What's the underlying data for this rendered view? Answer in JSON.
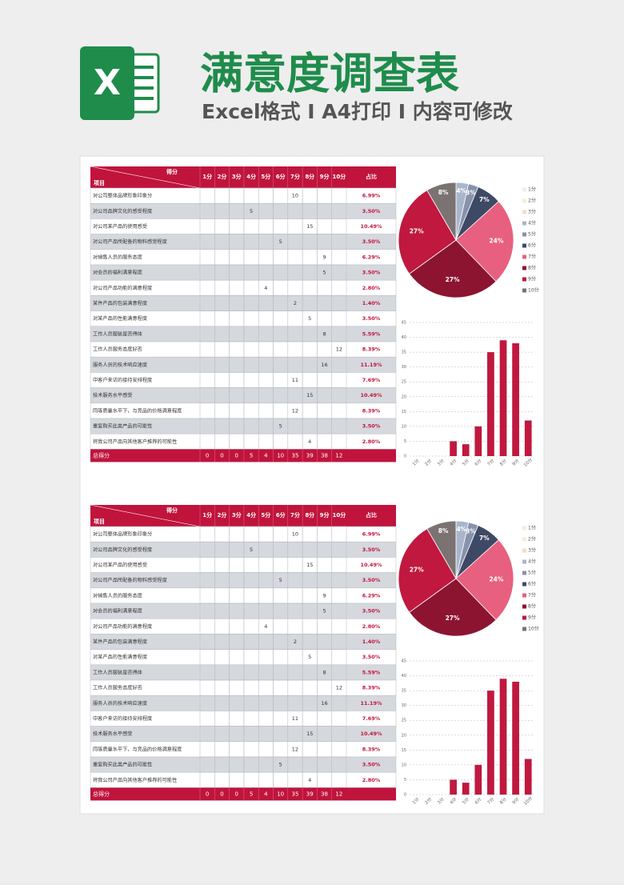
{
  "header": {
    "icon": "X",
    "title": "满意度调查表",
    "subtitle": "Excel格式 I A4打印 I 内容可修改"
  },
  "sheets": [
    {
      "table": {
        "score_header": "得分",
        "item_header": "项目",
        "columns": [
          "1分",
          "2分",
          "3分",
          "4分",
          "5分",
          "6分",
          "7分",
          "8分",
          "9分",
          "10分"
        ],
        "pct_header": "占比",
        "rows": [
          {
            "label": "对公司整体品牌形象印象分",
            "cells": [
              null,
              null,
              null,
              null,
              null,
              null,
              10,
              null,
              null,
              null
            ],
            "pct": "6.99%"
          },
          {
            "label": "对公司品牌文化的感受程度",
            "cells": [
              null,
              null,
              null,
              5,
              null,
              null,
              null,
              null,
              null,
              null
            ],
            "pct": "3.50%"
          },
          {
            "label": "对公司某产品的使用感受",
            "cells": [
              null,
              null,
              null,
              null,
              null,
              null,
              null,
              15,
              null,
              null
            ],
            "pct": "10.49%"
          },
          {
            "label": "对公司产品所配备的物料感受程度",
            "cells": [
              null,
              null,
              null,
              null,
              null,
              5,
              null,
              null,
              null,
              null
            ],
            "pct": "3.50%"
          },
          {
            "label": "对销售人员的服务态度",
            "cells": [
              null,
              null,
              null,
              null,
              null,
              null,
              null,
              null,
              9,
              null
            ],
            "pct": "6.29%"
          },
          {
            "label": "对会员的福利满意程度",
            "cells": [
              null,
              null,
              null,
              null,
              null,
              null,
              null,
              null,
              5,
              null
            ],
            "pct": "3.50%"
          },
          {
            "label": "对公司产品功能的满意程度",
            "cells": [
              null,
              null,
              null,
              null,
              4,
              null,
              null,
              null,
              null,
              null
            ],
            "pct": "2.80%"
          },
          {
            "label": "某件产品的包装满意程度",
            "cells": [
              null,
              null,
              null,
              null,
              null,
              null,
              2,
              null,
              null,
              null
            ],
            "pct": "1.40%"
          },
          {
            "label": "对某产品的性能满意程度",
            "cells": [
              null,
              null,
              null,
              null,
              null,
              null,
              null,
              5,
              null,
              null
            ],
            "pct": "3.50%"
          },
          {
            "label": "工作人员服装是否得体",
            "cells": [
              null,
              null,
              null,
              null,
              null,
              null,
              null,
              null,
              8,
              null
            ],
            "pct": "5.59%"
          },
          {
            "label": "工作人员服务态度好否",
            "cells": [
              null,
              null,
              null,
              null,
              null,
              null,
              null,
              null,
              null,
              12
            ],
            "pct": "8.39%"
          },
          {
            "label": "服务人员的技术响应速度",
            "cells": [
              null,
              null,
              null,
              null,
              null,
              null,
              null,
              null,
              16,
              null
            ],
            "pct": "11.19%"
          },
          {
            "label": "中客户来访的接待安排程度",
            "cells": [
              null,
              null,
              null,
              null,
              null,
              null,
              11,
              null,
              null,
              null
            ],
            "pct": "7.69%"
          },
          {
            "label": "技术服务水平感受",
            "cells": [
              null,
              null,
              null,
              null,
              null,
              null,
              null,
              15,
              null,
              null
            ],
            "pct": "10.49%"
          },
          {
            "label": "同等质量水平下，与竞品的价格满意程度",
            "cells": [
              null,
              null,
              null,
              null,
              null,
              null,
              12,
              null,
              null,
              null
            ],
            "pct": "8.39%"
          },
          {
            "label": "重复购买此类产品的可能性",
            "cells": [
              null,
              null,
              null,
              null,
              null,
              5,
              null,
              null,
              null,
              null
            ],
            "pct": "3.50%"
          },
          {
            "label": "将我公司产品向其他客户推荐的可能性",
            "cells": [
              null,
              null,
              null,
              null,
              null,
              null,
              null,
              4,
              null,
              null
            ],
            "pct": "2.80%"
          }
        ],
        "total_label": "总得分",
        "totals": [
          0,
          0,
          0,
          5,
          4,
          10,
          35,
          39,
          38,
          12
        ]
      },
      "pie_chart": {
        "type": "pie",
        "categories": [
          "1分",
          "2分",
          "3分",
          "4分",
          "5分",
          "6分",
          "7分",
          "8分",
          "9分",
          "10分"
        ],
        "values": [
          0,
          0,
          0,
          3.5,
          2.8,
          6.99,
          24.48,
          27.27,
          26.57,
          8.39
        ],
        "value_labels": [
          null,
          null,
          null,
          "4%",
          "3%",
          "7%",
          "24%",
          "27%",
          "27%",
          "8%"
        ],
        "colors": [
          "#f7ebe8",
          "#f4eedb",
          "#f7dcc6",
          "#a9b5ca",
          "#8792ad",
          "#3e4a65",
          "#e8607f",
          "#8c1431",
          "#c0183f",
          "#7a7372"
        ]
      },
      "bar_chart": {
        "type": "bar",
        "categories": [
          "1分",
          "2分",
          "3分",
          "4分",
          "5分",
          "6分",
          "7分",
          "8分",
          "9分",
          "10分"
        ],
        "values": [
          0,
          0,
          0,
          5,
          4,
          10,
          35,
          39,
          38,
          12
        ],
        "color": "#c0183f",
        "ylim": [
          0,
          45
        ],
        "yticks": [
          0,
          5,
          10,
          15,
          20,
          25,
          30,
          35,
          40,
          45
        ],
        "grid": true
      }
    },
    {
      "table": {
        "score_header": "得分",
        "item_header": "项目",
        "columns": [
          "1分",
          "2分",
          "3分",
          "4分",
          "5分",
          "6分",
          "7分",
          "8分",
          "9分",
          "10分"
        ],
        "pct_header": "占比",
        "rows": [
          {
            "label": "对公司整体品牌形象印象分",
            "cells": [
              null,
              null,
              null,
              null,
              null,
              null,
              10,
              null,
              null,
              null
            ],
            "pct": "6.99%"
          },
          {
            "label": "对公司品牌文化的感受程度",
            "cells": [
              null,
              null,
              null,
              5,
              null,
              null,
              null,
              null,
              null,
              null
            ],
            "pct": "3.50%"
          },
          {
            "label": "对公司某产品的使用感受",
            "cells": [
              null,
              null,
              null,
              null,
              null,
              null,
              null,
              15,
              null,
              null
            ],
            "pct": "10.49%"
          },
          {
            "label": "对公司产品所配备的物料感受程度",
            "cells": [
              null,
              null,
              null,
              null,
              null,
              5,
              null,
              null,
              null,
              null
            ],
            "pct": "3.50%"
          },
          {
            "label": "对销售人员的服务态度",
            "cells": [
              null,
              null,
              null,
              null,
              null,
              null,
              null,
              null,
              9,
              null
            ],
            "pct": "6.29%"
          },
          {
            "label": "对会员的福利满意程度",
            "cells": [
              null,
              null,
              null,
              null,
              null,
              null,
              null,
              null,
              5,
              null
            ],
            "pct": "3.50%"
          },
          {
            "label": "对公司产品功能的满意程度",
            "cells": [
              null,
              null,
              null,
              null,
              4,
              null,
              null,
              null,
              null,
              null
            ],
            "pct": "2.80%"
          },
          {
            "label": "某件产品的包装满意程度",
            "cells": [
              null,
              null,
              null,
              null,
              null,
              null,
              2,
              null,
              null,
              null
            ],
            "pct": "1.40%"
          },
          {
            "label": "对某产品的性能满意程度",
            "cells": [
              null,
              null,
              null,
              null,
              null,
              null,
              null,
              5,
              null,
              null
            ],
            "pct": "3.50%"
          },
          {
            "label": "工作人员服装是否得体",
            "cells": [
              null,
              null,
              null,
              null,
              null,
              null,
              null,
              null,
              8,
              null
            ],
            "pct": "5.59%"
          },
          {
            "label": "工作人员服务态度好否",
            "cells": [
              null,
              null,
              null,
              null,
              null,
              null,
              null,
              null,
              null,
              12
            ],
            "pct": "8.39%"
          },
          {
            "label": "服务人员的技术响应速度",
            "cells": [
              null,
              null,
              null,
              null,
              null,
              null,
              null,
              null,
              16,
              null
            ],
            "pct": "11.19%"
          },
          {
            "label": "中客户来访的接待安排程度",
            "cells": [
              null,
              null,
              null,
              null,
              null,
              null,
              11,
              null,
              null,
              null
            ],
            "pct": "7.69%"
          },
          {
            "label": "技术服务水平感受",
            "cells": [
              null,
              null,
              null,
              null,
              null,
              null,
              null,
              15,
              null,
              null
            ],
            "pct": "10.49%"
          },
          {
            "label": "同等质量水平下，与竞品的价格满意程度",
            "cells": [
              null,
              null,
              null,
              null,
              null,
              null,
              12,
              null,
              null,
              null
            ],
            "pct": "8.39%"
          },
          {
            "label": "重复购买此类产品的可能性",
            "cells": [
              null,
              null,
              null,
              null,
              null,
              5,
              null,
              null,
              null,
              null
            ],
            "pct": "3.50%"
          },
          {
            "label": "将我公司产品向其他客户推荐的可能性",
            "cells": [
              null,
              null,
              null,
              null,
              null,
              null,
              null,
              4,
              null,
              null
            ],
            "pct": "2.80%"
          }
        ],
        "total_label": "总得分",
        "totals": [
          0,
          0,
          0,
          5,
          4,
          10,
          35,
          39,
          38,
          12
        ]
      },
      "pie_chart": {
        "type": "pie",
        "categories": [
          "1分",
          "2分",
          "3分",
          "4分",
          "5分",
          "6分",
          "7分",
          "8分",
          "9分",
          "10分"
        ],
        "values": [
          0,
          0,
          0,
          3.5,
          2.8,
          6.99,
          24.48,
          27.27,
          26.57,
          8.39
        ],
        "value_labels": [
          null,
          null,
          null,
          "4%",
          "3%",
          "7%",
          "24%",
          "27%",
          "27%",
          "8%"
        ],
        "colors": [
          "#f7ebe8",
          "#f4eedb",
          "#f7dcc6",
          "#a9b5ca",
          "#8792ad",
          "#3e4a65",
          "#e8607f",
          "#8c1431",
          "#c0183f",
          "#7a7372"
        ]
      },
      "bar_chart": {
        "type": "bar",
        "categories": [
          "1分",
          "2分",
          "3分",
          "4分",
          "5分",
          "6分",
          "7分",
          "8分",
          "9分",
          "10分"
        ],
        "values": [
          0,
          0,
          0,
          5,
          4,
          10,
          35,
          39,
          38,
          12
        ],
        "color": "#c0183f",
        "ylim": [
          0,
          45
        ],
        "yticks": [
          0,
          5,
          10,
          15,
          20,
          25,
          30,
          35,
          40,
          45
        ],
        "grid": true
      }
    }
  ]
}
